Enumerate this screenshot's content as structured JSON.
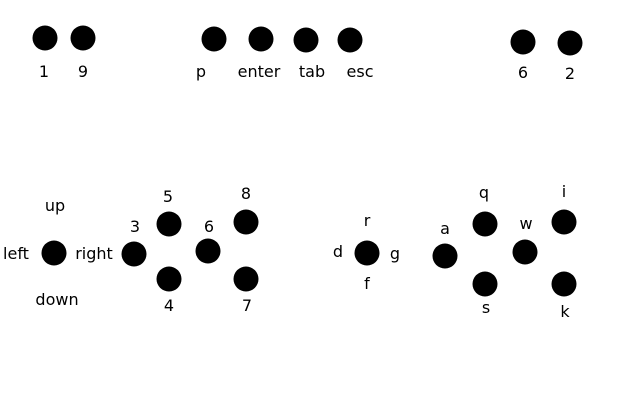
{
  "colors": {
    "background": "#ffffff",
    "button": "#000000",
    "text": "#000000"
  },
  "top_row": {
    "number_pair": [
      {
        "label": "1",
        "icon": "circle-button-icon"
      },
      {
        "label": "9",
        "icon": "circle-button-icon"
      }
    ],
    "command_keys": [
      {
        "label": "p",
        "icon": "circle-button-icon"
      },
      {
        "label": "enter",
        "icon": "circle-button-icon"
      },
      {
        "label": "tab",
        "icon": "circle-button-icon"
      },
      {
        "label": "esc",
        "icon": "circle-button-icon"
      }
    ],
    "right_pair": [
      {
        "label": "6",
        "icon": "circle-button-icon"
      },
      {
        "label": "2",
        "icon": "circle-button-icon"
      }
    ]
  },
  "dpad": {
    "center_icon": "circle-button-icon",
    "up": "up",
    "left": "left",
    "right": "right",
    "down": "down"
  },
  "numeric_cluster": [
    {
      "label": "3",
      "icon": "circle-button-icon"
    },
    {
      "label": "5",
      "icon": "circle-button-icon"
    },
    {
      "label": "4",
      "icon": "circle-button-icon"
    },
    {
      "label": "6",
      "icon": "circle-button-icon"
    },
    {
      "label": "8",
      "icon": "circle-button-icon"
    },
    {
      "label": "7",
      "icon": "circle-button-icon"
    }
  ],
  "rdfg_cross": {
    "center_icon": "circle-button-icon",
    "up": "r",
    "left": "d",
    "right": "g",
    "down": "f"
  },
  "letter_cluster": [
    {
      "label": "a",
      "icon": "circle-button-icon"
    },
    {
      "label": "q",
      "icon": "circle-button-icon"
    },
    {
      "label": "s",
      "icon": "circle-button-icon"
    },
    {
      "label": "w",
      "icon": "circle-button-icon"
    },
    {
      "label": "i",
      "icon": "circle-button-icon"
    },
    {
      "label": "k",
      "icon": "circle-button-icon"
    }
  ]
}
